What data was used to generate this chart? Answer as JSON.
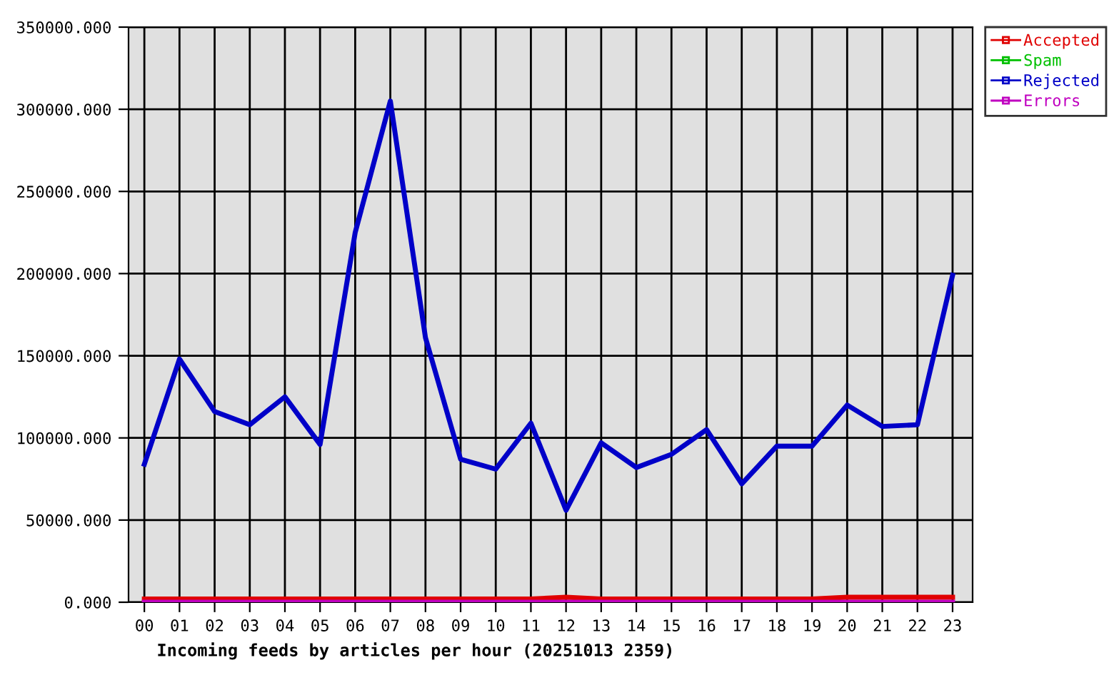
{
  "chart_data": {
    "type": "line",
    "xlabel": "Incoming feeds by articles per hour (20251013 2359)",
    "categories": [
      "00",
      "01",
      "02",
      "03",
      "04",
      "05",
      "06",
      "07",
      "08",
      "09",
      "10",
      "11",
      "12",
      "13",
      "14",
      "15",
      "16",
      "17",
      "18",
      "19",
      "20",
      "21",
      "22",
      "23"
    ],
    "series": [
      {
        "name": "Accepted",
        "color": "#e00000",
        "values": [
          2000,
          2000,
          2000,
          2000,
          2000,
          2000,
          2000,
          2000,
          2000,
          2000,
          2000,
          2000,
          3000,
          2000,
          2000,
          2000,
          2000,
          2000,
          2000,
          2000,
          3000,
          3000,
          3000,
          3000
        ]
      },
      {
        "name": "Spam",
        "color": "#00c000",
        "values": [
          null,
          null,
          null,
          null,
          null,
          null,
          null,
          null,
          null,
          null,
          null,
          null,
          null,
          null,
          null,
          null,
          null,
          null,
          null,
          null,
          null,
          null,
          null,
          null
        ]
      },
      {
        "name": "Rejected",
        "color": "#0000c8",
        "values": [
          84000,
          148000,
          116000,
          108000,
          125000,
          96000,
          225000,
          305000,
          161000,
          87000,
          81000,
          109000,
          56000,
          97000,
          82000,
          90000,
          105000,
          72000,
          95000,
          95000,
          120000,
          107000,
          108000,
          199000
        ]
      },
      {
        "name": "Errors",
        "color": "#c000c0",
        "values": [
          0,
          0,
          0,
          0,
          0,
          0,
          0,
          0,
          0,
          0,
          0,
          0,
          0,
          0,
          0,
          0,
          0,
          0,
          0,
          0,
          0,
          0,
          0,
          0
        ]
      }
    ],
    "ylim": [
      0,
      350000
    ],
    "yticks": [
      {
        "value": 0,
        "label": "0.000"
      },
      {
        "value": 50000,
        "label": "50000.000"
      },
      {
        "value": 100000,
        "label": "100000.000"
      },
      {
        "value": 150000,
        "label": "150000.000"
      },
      {
        "value": 200000,
        "label": "200000.000"
      },
      {
        "value": 250000,
        "label": "250000.000"
      },
      {
        "value": 300000,
        "label": "300000.000"
      },
      {
        "value": 350000,
        "label": "350000.000"
      }
    ],
    "grid": true,
    "legend": "top right",
    "marker": "none",
    "line_style": "solid"
  }
}
